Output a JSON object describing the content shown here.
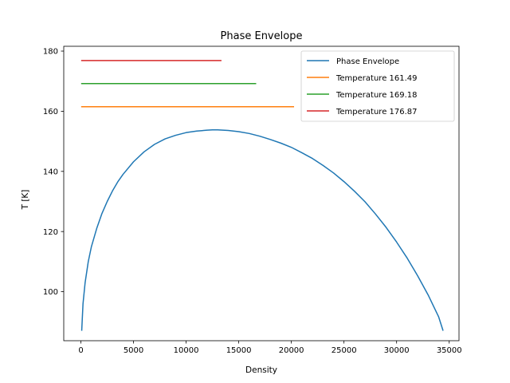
{
  "chart_data": {
    "type": "line",
    "title": "Phase Envelope",
    "xlabel": "Density",
    "ylabel": "T [K]",
    "xlim": [
      -1630,
      35930
    ],
    "ylim": [
      83.7,
      181.6
    ],
    "xticks": [
      0,
      5000,
      10000,
      15000,
      20000,
      25000,
      30000,
      35000
    ],
    "yticks": [
      100,
      120,
      140,
      160,
      180
    ],
    "grid": false,
    "legend_position": "top-right",
    "series": [
      {
        "name": "Phase Envelope",
        "color": "#1f77b4",
        "x": [
          80,
          200,
          400,
          700,
          1000,
          1500,
          2000,
          2500,
          3000,
          3500,
          4000,
          5000,
          6000,
          7000,
          8000,
          9000,
          10000,
          11000,
          12000,
          12500,
          13000,
          14000,
          15000,
          16000,
          17000,
          18000,
          19000,
          20000,
          21000,
          22000,
          23000,
          24000,
          25000,
          26000,
          27000,
          28000,
          29000,
          30000,
          31000,
          32000,
          33000,
          34000,
          34400
        ],
        "y": [
          87.2,
          96.0,
          103.0,
          110.0,
          115.0,
          121.0,
          126.0,
          130.0,
          133.5,
          136.5,
          139.0,
          143.2,
          146.5,
          149.0,
          150.8,
          152.0,
          152.9,
          153.4,
          153.7,
          153.8,
          153.8,
          153.6,
          153.2,
          152.6,
          151.7,
          150.6,
          149.4,
          148.0,
          146.2,
          144.3,
          142.0,
          139.5,
          136.6,
          133.4,
          129.9,
          125.8,
          121.4,
          116.5,
          111.2,
          105.3,
          98.9,
          91.6,
          87.2
        ]
      },
      {
        "name": "Temperature 161.49",
        "color": "#ff7f0e",
        "x": [
          80,
          20200
        ],
        "y": [
          161.49,
          161.49
        ]
      },
      {
        "name": "Temperature 169.18",
        "color": "#2ca02c",
        "x": [
          80,
          16600
        ],
        "y": [
          169.18,
          169.18
        ]
      },
      {
        "name": "Temperature 176.87",
        "color": "#d62728",
        "x": [
          80,
          13300
        ],
        "y": [
          176.87,
          176.87
        ]
      }
    ]
  }
}
